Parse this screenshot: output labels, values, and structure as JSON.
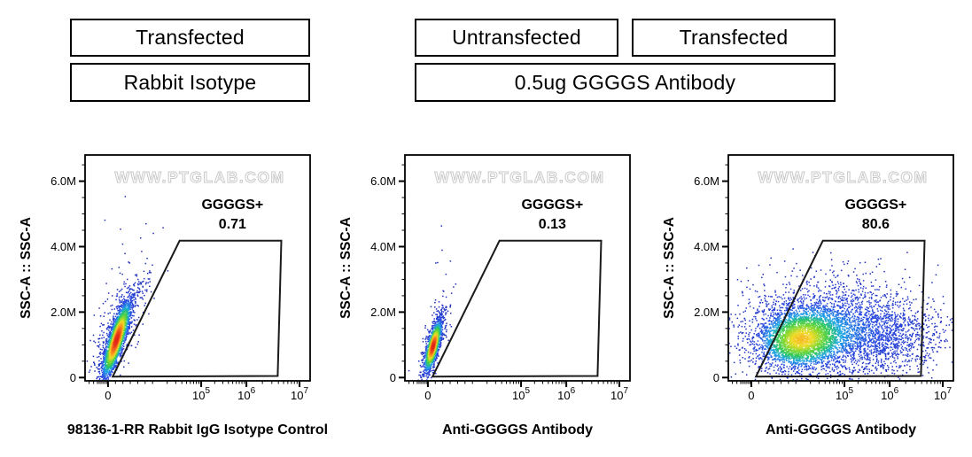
{
  "headers": {
    "col1_top": "Transfected",
    "col1_bottom": "Rabbit Isotype",
    "col2_top": "Untransfected",
    "col3_top": "Transfected",
    "col23_bottom": "0.5ug GGGGS Antibody"
  },
  "style": {
    "axis_color": "#000000",
    "gate_stroke": "#1a1a1a",
    "watermark_stroke": "#c9c9c9",
    "dot_palette": [
      [
        0.0,
        "#1f2ab4"
      ],
      [
        0.3,
        "#2848e0"
      ],
      [
        0.45,
        "#1ea5e8"
      ],
      [
        0.57,
        "#2dc85e"
      ],
      [
        0.68,
        "#7ed732"
      ],
      [
        0.78,
        "#f0dc28"
      ],
      [
        0.88,
        "#fa8c1e"
      ],
      [
        1.0,
        "#e12319"
      ]
    ]
  },
  "chart_data": [
    {
      "type": "scatter",
      "panel": "transfected-rabbit-isotype",
      "xlabel": "98136-1-RR Rabbit IgG Isotype Control",
      "ylabel": "SSC-A :: SSC-A",
      "watermark": "WWW.PTGLAB.COM",
      "gate_label": "GGGGS+",
      "gate_percent": "0.71",
      "x_axis": {
        "scale": "logicle",
        "major_ticks": [
          {
            "label": "0",
            "f": 0.102
          },
          {
            "base": "10",
            "exp": "5",
            "f": 0.516
          },
          {
            "base": "10",
            "exp": "6",
            "f": 0.717
          },
          {
            "base": "10",
            "exp": "7",
            "f": 0.953
          }
        ]
      },
      "y_axis": {
        "unit": "M",
        "range_M": [
          -0.1,
          6.8
        ],
        "major_ticks": [
          {
            "label": "0",
            "v": 0
          },
          {
            "label": "2.0M",
            "v": 2
          },
          {
            "label": "4.0M",
            "v": 4
          },
          {
            "label": "6.0M",
            "v": 6
          }
        ]
      },
      "gate_vertices": [
        [
          0.123,
          0.03
        ],
        [
          0.42,
          4.18
        ],
        [
          0.872,
          4.18
        ],
        [
          0.856,
          0.05
        ]
      ],
      "clusters": [
        {
          "cx": 0.14,
          "cy": 1.15,
          "slope": 0.044,
          "sx": 0.018,
          "sy": 0.6,
          "n": 2600,
          "w": 1.0
        },
        {
          "cx": 0.155,
          "cy": 1.7,
          "slope": 0.048,
          "sx": 0.05,
          "sy": 0.95,
          "n": 380,
          "w": 0.035
        },
        {
          "cx": 0.15,
          "cy": 4.9,
          "slope": 0.03,
          "sx": 0.03,
          "sy": 0.4,
          "n": 3,
          "w": 0.001
        }
      ],
      "color_gain": 1.0,
      "seed": 11
    },
    {
      "type": "scatter",
      "panel": "untransfected-antibody",
      "xlabel": "Anti-GGGGS Antibody",
      "ylabel": "SSC-A :: SSC-A",
      "watermark": "WWW.PTGLAB.COM",
      "gate_label": "GGGGS+",
      "gate_percent": "0.13",
      "x_axis": {
        "scale": "logicle",
        "major_ticks": [
          {
            "label": "0",
            "f": 0.102
          },
          {
            "base": "10",
            "exp": "5",
            "f": 0.516
          },
          {
            "base": "10",
            "exp": "6",
            "f": 0.717
          },
          {
            "base": "10",
            "exp": "7",
            "f": 0.953
          }
        ]
      },
      "y_axis": {
        "unit": "M",
        "range_M": [
          -0.1,
          6.8
        ],
        "major_ticks": [
          {
            "label": "0",
            "v": 0
          },
          {
            "label": "2.0M",
            "v": 2
          },
          {
            "label": "4.0M",
            "v": 4
          },
          {
            "label": "6.0M",
            "v": 6
          }
        ]
      },
      "gate_vertices": [
        [
          0.123,
          0.03
        ],
        [
          0.42,
          4.18
        ],
        [
          0.872,
          4.18
        ],
        [
          0.856,
          0.05
        ]
      ],
      "clusters": [
        {
          "cx": 0.125,
          "cy": 0.95,
          "slope": 0.035,
          "sx": 0.013,
          "sy": 0.4,
          "n": 1500,
          "w": 1.0
        },
        {
          "cx": 0.135,
          "cy": 1.25,
          "slope": 0.04,
          "sx": 0.028,
          "sy": 0.7,
          "n": 170,
          "w": 0.03
        },
        {
          "cx": 0.15,
          "cy": 3.8,
          "slope": 0.0,
          "sx": 0.04,
          "sy": 0.45,
          "n": 5,
          "w": 0.001
        }
      ],
      "color_gain": 1.0,
      "seed": 23
    },
    {
      "type": "scatter",
      "panel": "transfected-antibody",
      "xlabel": "Anti-GGGGS Antibody",
      "ylabel": "SSC-A :: SSC-A",
      "watermark": "WWW.PTGLAB.COM",
      "gate_label": "GGGGS+",
      "gate_percent": "80.6",
      "x_axis": {
        "scale": "logicle",
        "major_ticks": [
          {
            "label": "0",
            "f": 0.102
          },
          {
            "base": "10",
            "exp": "5",
            "f": 0.516
          },
          {
            "base": "10",
            "exp": "6",
            "f": 0.717
          },
          {
            "base": "10",
            "exp": "7",
            "f": 0.953
          }
        ]
      },
      "y_axis": {
        "unit": "M",
        "range_M": [
          -0.1,
          6.8
        ],
        "major_ticks": [
          {
            "label": "0",
            "v": 0
          },
          {
            "label": "2.0M",
            "v": 2
          },
          {
            "label": "4.0M",
            "v": 4
          },
          {
            "label": "6.0M",
            "v": 6
          }
        ]
      },
      "gate_vertices": [
        [
          0.123,
          0.03
        ],
        [
          0.42,
          4.18
        ],
        [
          0.872,
          4.18
        ],
        [
          0.856,
          0.05
        ]
      ],
      "clusters": [
        {
          "cx": 0.32,
          "cy": 1.15,
          "slope": 0.02,
          "sx": 0.095,
          "sy": 0.45,
          "n": 2400,
          "w": 1.0
        },
        {
          "cx": 0.44,
          "cy": 1.5,
          "slope": 0.0,
          "sx": 0.2,
          "sy": 0.78,
          "n": 2600,
          "w": 0.3
        },
        {
          "cx": 0.7,
          "cy": 1.3,
          "slope": 0.0,
          "sx": 0.14,
          "sy": 0.58,
          "n": 900,
          "w": 0.1
        }
      ],
      "color_gain": 0.82,
      "seed": 37
    }
  ]
}
